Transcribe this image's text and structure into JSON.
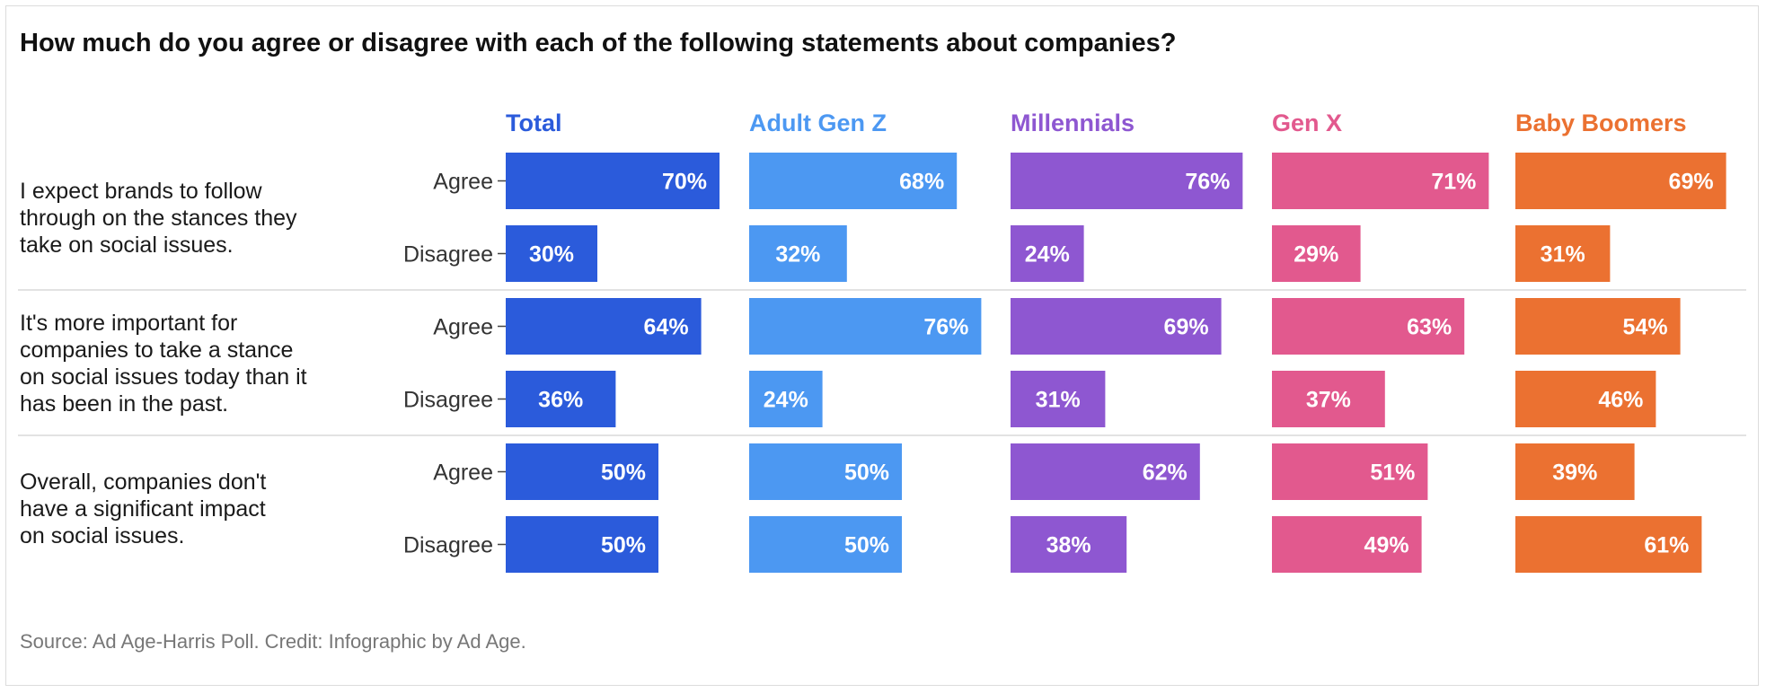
{
  "chart_data": {
    "type": "bar",
    "title": "How much do you agree or disagree with each of the following statements about companies?",
    "source": "Source: Ad Age-Harris Poll. Credit: Infographic by Ad Age.",
    "columns": [
      {
        "name": "Total",
        "color": "#2B5BDB"
      },
      {
        "name": "Adult Gen Z",
        "color": "#4C98F2"
      },
      {
        "name": "Millennials",
        "color": "#8E57D1"
      },
      {
        "name": "Gen X",
        "color": "#E2598E"
      },
      {
        "name": "Baby Boomers",
        "color": "#EB7131"
      }
    ],
    "response_labels": [
      "Agree",
      "Disagree"
    ],
    "statements": [
      {
        "lines": [
          "I expect brands to follow",
          "through on the stances they",
          "take on social issues."
        ],
        "agree": [
          70,
          68,
          76,
          71,
          69
        ],
        "disagree": [
          30,
          32,
          24,
          29,
          31
        ]
      },
      {
        "lines": [
          "It's more important for",
          "companies to take a stance",
          "on social issues today than it",
          "has been in the past."
        ],
        "agree": [
          64,
          76,
          69,
          63,
          54
        ],
        "disagree": [
          36,
          24,
          31,
          37,
          46
        ]
      },
      {
        "lines": [
          "Overall, companies don't",
          "have a significant impact",
          "on social issues."
        ],
        "agree": [
          50,
          50,
          62,
          51,
          39
        ],
        "disagree": [
          50,
          50,
          38,
          49,
          61
        ]
      }
    ],
    "value_suffix": "%"
  }
}
